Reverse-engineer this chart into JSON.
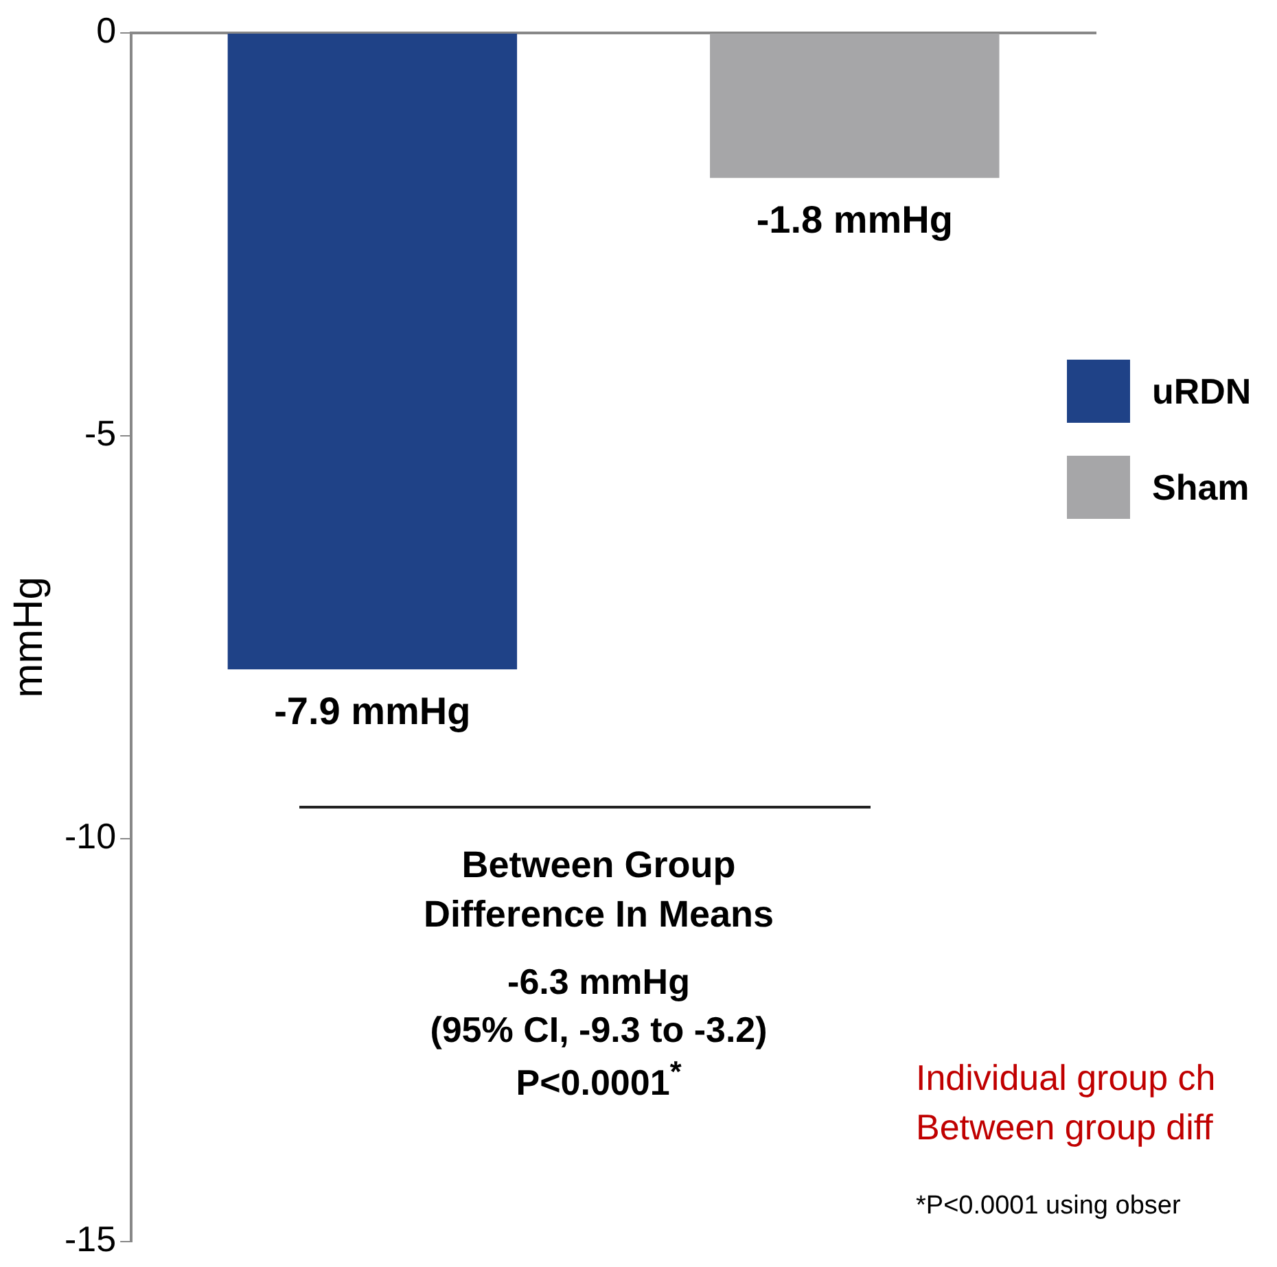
{
  "chart_data": {
    "type": "bar",
    "ylabel": "mmHg",
    "categories": [
      null,
      null
    ],
    "series": [
      {
        "name": "uRDN",
        "color": "#1f4287",
        "values": [
          -7.9,
          null
        ],
        "value_labels": [
          "-7.9 mmHg",
          null
        ]
      },
      {
        "name": "Sham",
        "color": "#a6a6a8",
        "values": [
          null,
          -1.8
        ],
        "value_labels": [
          null,
          "-1.8 mmHg"
        ]
      }
    ],
    "ylim": [
      -15,
      0
    ],
    "yticks": [
      0,
      -5,
      -10,
      -15
    ],
    "grid": false,
    "legend": "right",
    "annotations": [
      "Between Group Difference In Means",
      "-6.3 mmHg",
      "(95% CI,  -9.3 to -3.2)",
      "P<0.0001$^{*}$",
      "Individual group ch",
      "Between group diff",
      "*P<0.0001 using obser"
    ]
  }
}
